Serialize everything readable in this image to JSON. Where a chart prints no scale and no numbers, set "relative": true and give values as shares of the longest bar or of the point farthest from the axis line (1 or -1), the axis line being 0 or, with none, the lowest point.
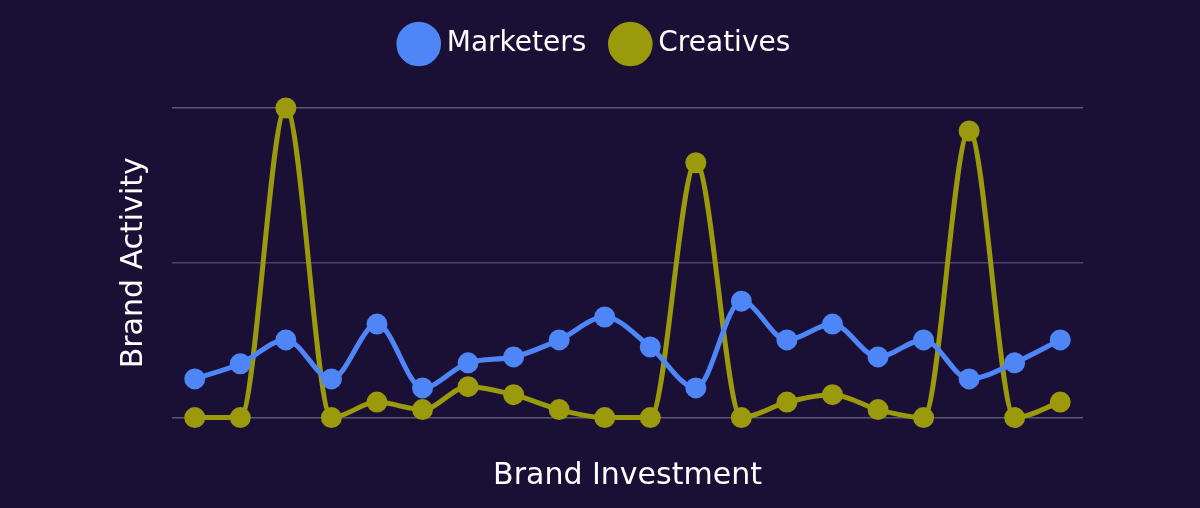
{
  "chart_data": {
    "type": "line",
    "relative": true,
    "xlabel": "Brand Investment",
    "ylabel": "Brand Activity",
    "legend": "top",
    "grid": "y",
    "marker": "circle",
    "ref_lines": [
      {
        "axis": "y",
        "value": 0.5,
        "color": "#4a4170"
      }
    ],
    "categories": [
      null,
      null,
      null,
      null,
      null,
      null,
      null,
      null,
      null,
      null,
      null,
      null,
      null,
      null,
      null,
      null,
      null,
      null,
      null,
      null
    ],
    "series": [
      {
        "name": "Marketers",
        "color": "#4f86f7",
        "values": [
          0.125,
          0.174,
          0.251,
          0.125,
          0.302,
          0.096,
          0.177,
          0.196,
          0.251,
          0.325,
          0.228,
          0.096,
          0.376,
          0.251,
          0.302,
          0.196,
          0.251,
          0.125,
          0.177,
          0.251
        ]
      },
      {
        "name": "Creatives",
        "color": "#9a9a0c",
        "values": [
          0,
          0,
          1,
          0,
          0.05,
          0.026,
          0.1,
          0.074,
          0.026,
          0,
          0,
          0.823,
          0,
          0.05,
          0.074,
          0.026,
          0,
          0.926,
          0,
          0.05
        ]
      }
    ]
  }
}
